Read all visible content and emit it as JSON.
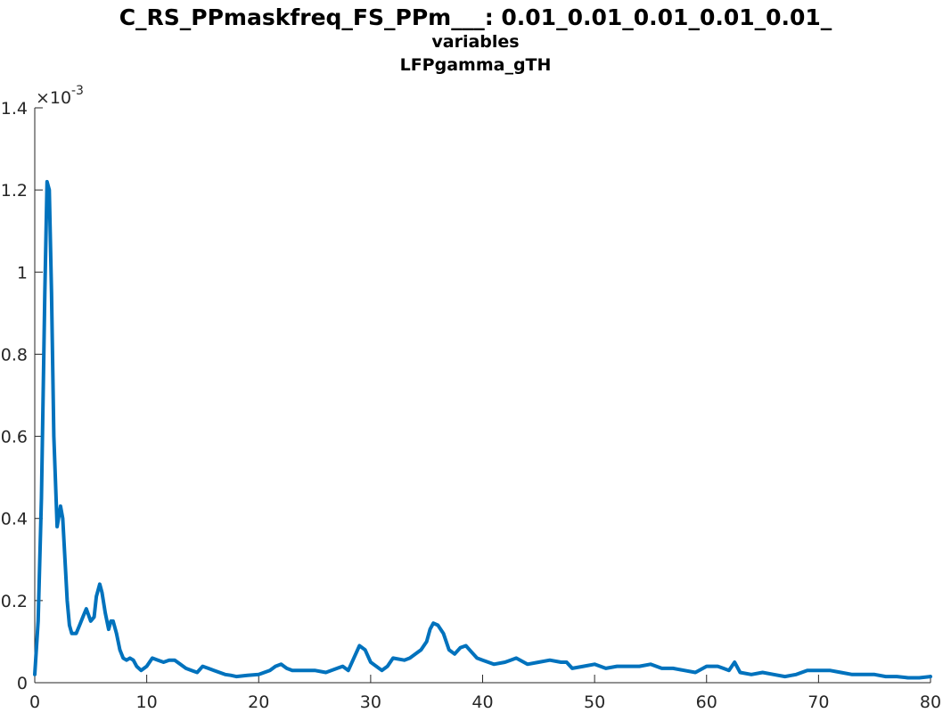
{
  "chart_data": {
    "type": "line",
    "title": "C_RS_PPmaskfreq_FS_PPm___: 0.01_0.01_0.01_0.01_0.01_",
    "subtitle_lines": [
      "variables",
      "LFPgamma_gTH"
    ],
    "xlabel": "",
    "ylabel": "",
    "xlim": [
      0,
      80
    ],
    "ylim": [
      0,
      1.4
    ],
    "y_exponent_label": "×10",
    "y_exponent_power": "-3",
    "xticks": [
      0,
      10,
      20,
      30,
      40,
      50,
      60,
      70,
      80
    ],
    "xtick_labels": [
      "0",
      "10",
      "20",
      "30",
      "40",
      "50",
      "60",
      "70",
      "80"
    ],
    "yticks": [
      0,
      0.2,
      0.4,
      0.6,
      0.8,
      1,
      1.2,
      1.4
    ],
    "ytick_labels": [
      "0",
      "0.2",
      "0.4",
      "0.6",
      "0.8",
      "1",
      "1.2",
      "1.4"
    ],
    "grid": false,
    "line_color": "#0072BD",
    "series": [
      {
        "x": [
          0,
          0.3,
          0.6,
          0.9,
          1.1,
          1.3,
          1.5,
          1.7,
          2.0,
          2.3,
          2.5,
          2.7,
          2.9,
          3.1,
          3.3,
          3.5,
          3.7,
          4.0,
          4.3,
          4.6,
          5.0,
          5.3,
          5.5,
          5.8,
          6.0,
          6.3,
          6.6,
          6.8,
          7.0,
          7.3,
          7.6,
          7.9,
          8.2,
          8.5,
          8.8,
          9.1,
          9.5,
          10.0,
          10.5,
          11.0,
          11.5,
          12.0,
          12.5,
          13.0,
          13.5,
          14.0,
          14.5,
          15.0,
          15.5,
          16.0,
          16.5,
          17.0,
          17.5,
          18.0,
          19.0,
          20.0,
          21.0,
          21.5,
          22.0,
          22.5,
          23.0,
          24.0,
          25.0,
          26.0,
          27.0,
          27.5,
          28.0,
          28.5,
          29.0,
          29.5,
          30.0,
          31.0,
          31.5,
          32.0,
          33.0,
          33.5,
          34.0,
          34.5,
          35.0,
          35.3,
          35.6,
          36.0,
          36.5,
          37.0,
          37.5,
          38.0,
          38.5,
          39.0,
          39.5,
          40.0,
          41.0,
          42.0,
          42.5,
          43.0,
          44.0,
          45.0,
          46.0,
          47.0,
          47.5,
          48.0,
          49.0,
          50.0,
          51.0,
          52.0,
          53.0,
          54.0,
          55.0,
          56.0,
          57.0,
          58.0,
          59.0,
          60.0,
          61.0,
          61.5,
          62.0,
          62.5,
          63.0,
          64.0,
          65.0,
          66.0,
          67.0,
          68.0,
          69.0,
          70.0,
          71.0,
          72.0,
          73.0,
          74.0,
          75.0,
          76.0,
          77.0,
          78.0,
          79.0,
          80.0
        ],
        "y": [
          0.02,
          0.15,
          0.45,
          0.95,
          1.22,
          1.2,
          0.95,
          0.6,
          0.38,
          0.43,
          0.4,
          0.3,
          0.2,
          0.14,
          0.12,
          0.12,
          0.12,
          0.14,
          0.16,
          0.18,
          0.15,
          0.16,
          0.21,
          0.24,
          0.22,
          0.17,
          0.13,
          0.15,
          0.15,
          0.12,
          0.08,
          0.06,
          0.055,
          0.06,
          0.055,
          0.04,
          0.03,
          0.04,
          0.06,
          0.055,
          0.05,
          0.055,
          0.055,
          0.045,
          0.035,
          0.03,
          0.025,
          0.04,
          0.035,
          0.03,
          0.025,
          0.02,
          0.018,
          0.015,
          0.018,
          0.02,
          0.03,
          0.04,
          0.045,
          0.035,
          0.03,
          0.03,
          0.03,
          0.025,
          0.035,
          0.04,
          0.03,
          0.06,
          0.09,
          0.08,
          0.05,
          0.03,
          0.04,
          0.06,
          0.055,
          0.06,
          0.07,
          0.08,
          0.1,
          0.13,
          0.145,
          0.14,
          0.12,
          0.08,
          0.07,
          0.085,
          0.09,
          0.075,
          0.06,
          0.055,
          0.045,
          0.05,
          0.055,
          0.06,
          0.045,
          0.05,
          0.055,
          0.05,
          0.05,
          0.035,
          0.04,
          0.045,
          0.035,
          0.04,
          0.04,
          0.04,
          0.045,
          0.035,
          0.035,
          0.03,
          0.025,
          0.04,
          0.04,
          0.035,
          0.03,
          0.05,
          0.025,
          0.02,
          0.025,
          0.02,
          0.015,
          0.02,
          0.03,
          0.03,
          0.03,
          0.025,
          0.02,
          0.02,
          0.02,
          0.015,
          0.015,
          0.012,
          0.012,
          0.015
        ]
      }
    ]
  }
}
